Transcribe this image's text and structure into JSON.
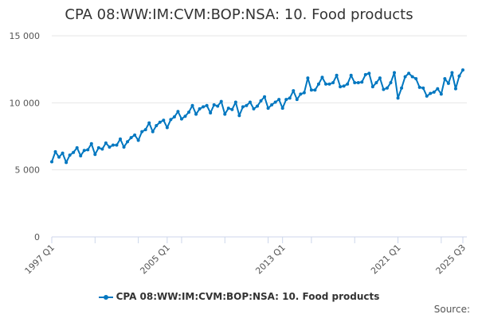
{
  "chart_data": {
    "type": "line",
    "title": "CPA 08:WW:IM:CVM:BOP:NSA: 10. Food products",
    "xlabel": "",
    "ylabel": "",
    "ylim": [
      0,
      15000
    ],
    "yticks": [
      0,
      5000,
      10000,
      15000
    ],
    "ytick_labels": [
      "0",
      "5 000",
      "10 000",
      "15 000"
    ],
    "xtick_labels": [
      "1997 Q1",
      "2005 Q1",
      "2013 Q1",
      "2021 Q1",
      "2025 Q3"
    ],
    "grid": true,
    "legend_position": "bottom",
    "color": "#0077c0",
    "start": "1997 Q1",
    "end": "2025 Q3",
    "series": [
      {
        "name": "CPA 08:WW:IM:CVM:BOP:NSA: 10. Food products",
        "values": [
          5600,
          6350,
          5950,
          6250,
          5550,
          6100,
          6300,
          6650,
          6050,
          6450,
          6500,
          6950,
          6150,
          6650,
          6550,
          7000,
          6700,
          6850,
          6850,
          7300,
          6700,
          7100,
          7400,
          7600,
          7200,
          7850,
          8000,
          8500,
          7850,
          8300,
          8550,
          8700,
          8150,
          8750,
          8950,
          9350,
          8800,
          9000,
          9300,
          9800,
          9150,
          9550,
          9700,
          9800,
          9250,
          9850,
          9750,
          10100,
          9150,
          9600,
          9500,
          10050,
          9050,
          9700,
          9800,
          10050,
          9550,
          9750,
          10150,
          10450,
          9600,
          9850,
          10050,
          10250,
          9600,
          10250,
          10350,
          10900,
          10250,
          10650,
          10750,
          11850,
          10950,
          10950,
          11400,
          11900,
          11400,
          11400,
          11500,
          12050,
          11200,
          11250,
          11400,
          12050,
          11500,
          11500,
          11550,
          12100,
          12200,
          11200,
          11500,
          11850,
          11000,
          11100,
          11500,
          12250,
          10350,
          11100,
          11950,
          12200,
          11950,
          11800,
          11150,
          11100,
          10500,
          10700,
          10800,
          11050,
          10650,
          11800,
          11450,
          12250,
          11050,
          12000,
          12450
        ]
      }
    ]
  },
  "source_label": "Source:"
}
